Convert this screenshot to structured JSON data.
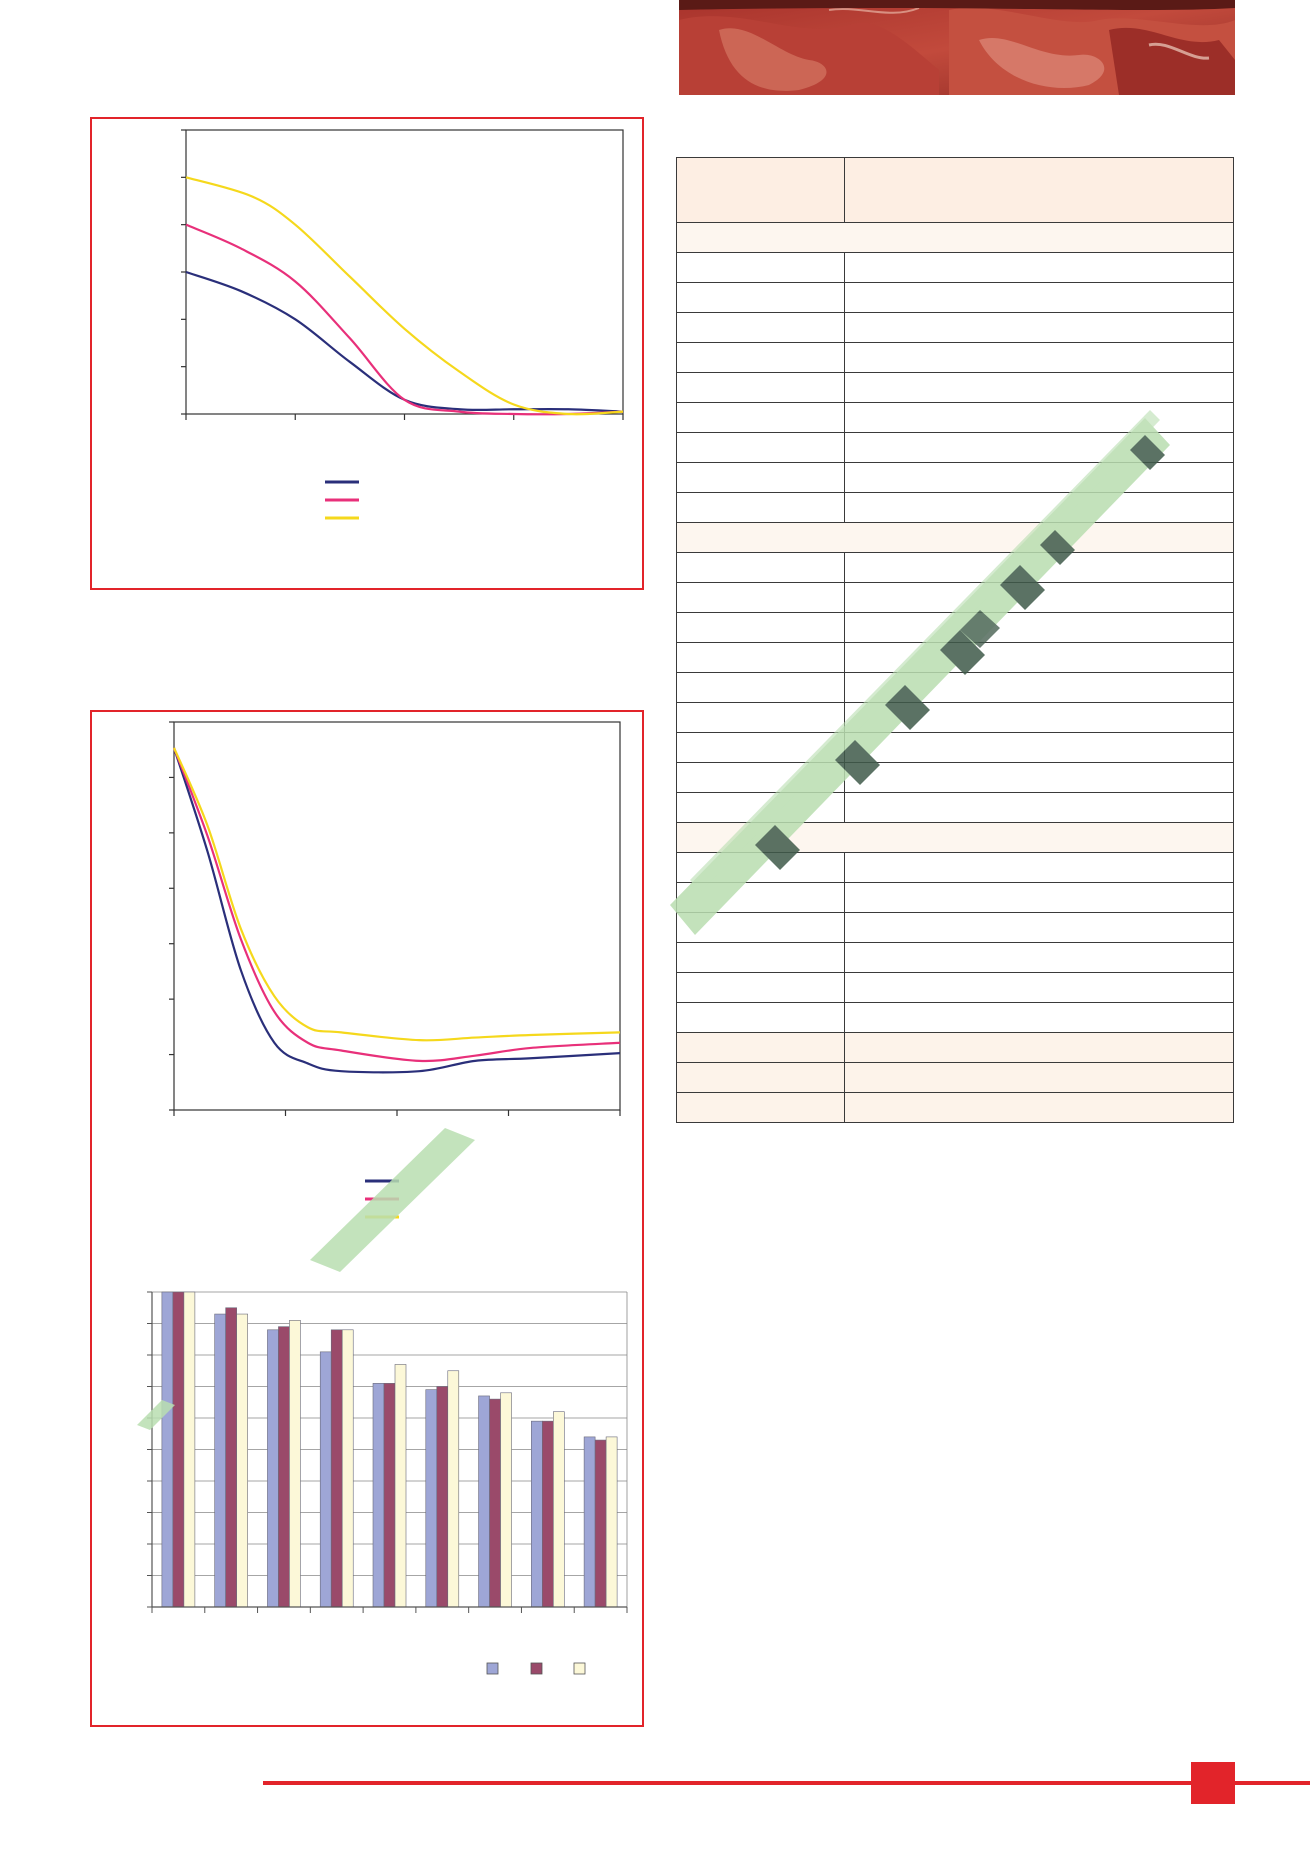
{
  "colors": {
    "navy": "#2a2f7a",
    "magenta": "#e8307a",
    "yellow": "#f5d81c",
    "frame": "#e2242a",
    "bar1": "#9ea6d6",
    "bar2": "#9a4a6a",
    "bar3": "#fcf8d8"
  },
  "photo": {
    "icon": "meat-photo"
  },
  "chart_data": [
    {
      "type": "line",
      "x": [
        0,
        0.25,
        0.5,
        0.75,
        1.0
      ],
      "ylim": [
        0,
        6
      ],
      "xlim": [
        0,
        4
      ],
      "grid": false,
      "legend": "bottom-center",
      "series": [
        {
          "color": "#2a2f7a",
          "points": [
            [
              0,
              3.0
            ],
            [
              0.5,
              2.6
            ],
            [
              1,
              2.0
            ],
            [
              1.5,
              1.1
            ],
            [
              2,
              0.3
            ],
            [
              2.5,
              0.1
            ],
            [
              3,
              0.1
            ],
            [
              3.5,
              0.1
            ],
            [
              4,
              0.05
            ]
          ]
        },
        {
          "color": "#e8307a",
          "points": [
            [
              0,
              4.0
            ],
            [
              0.5,
              3.5
            ],
            [
              1,
              2.8
            ],
            [
              1.5,
              1.6
            ],
            [
              2,
              0.3
            ],
            [
              2.5,
              0.05
            ],
            [
              3,
              0.0
            ],
            [
              3.5,
              0.0
            ],
            [
              4,
              0.05
            ]
          ]
        },
        {
          "color": "#f5d81c",
          "points": [
            [
              0,
              5.0
            ],
            [
              0.6,
              4.6
            ],
            [
              1,
              4.0
            ],
            [
              1.5,
              2.9
            ],
            [
              2,
              1.8
            ],
            [
              2.5,
              0.9
            ],
            [
              3,
              0.2
            ],
            [
              3.5,
              0.0
            ],
            [
              4,
              0.05
            ]
          ]
        }
      ]
    },
    {
      "type": "line",
      "xlim": [
        0,
        4
      ],
      "ylim": [
        0,
        7.5
      ],
      "grid": false,
      "legend": "bottom-center",
      "series": [
        {
          "color": "#2a2f7a",
          "points": [
            [
              0,
              7.0
            ],
            [
              0.3,
              5.0
            ],
            [
              0.6,
              2.7
            ],
            [
              0.9,
              1.3
            ],
            [
              1.2,
              0.9
            ],
            [
              1.5,
              0.75
            ],
            [
              2.2,
              0.75
            ],
            [
              2.7,
              0.95
            ],
            [
              3.2,
              1.0
            ],
            [
              4,
              1.1
            ]
          ]
        },
        {
          "color": "#e8307a",
          "points": [
            [
              0,
              7.0
            ],
            [
              0.3,
              5.3
            ],
            [
              0.6,
              3.3
            ],
            [
              0.9,
              1.9
            ],
            [
              1.2,
              1.3
            ],
            [
              1.5,
              1.15
            ],
            [
              2.2,
              0.95
            ],
            [
              2.7,
              1.05
            ],
            [
              3.2,
              1.2
            ],
            [
              4,
              1.3
            ]
          ]
        },
        {
          "color": "#f5d81c",
          "points": [
            [
              0,
              7.0
            ],
            [
              0.3,
              5.5
            ],
            [
              0.6,
              3.5
            ],
            [
              0.9,
              2.2
            ],
            [
              1.2,
              1.6
            ],
            [
              1.5,
              1.5
            ],
            [
              2.2,
              1.35
            ],
            [
              2.7,
              1.4
            ],
            [
              3.2,
              1.45
            ],
            [
              4,
              1.5
            ]
          ]
        }
      ]
    },
    {
      "type": "bar",
      "categories": [
        "",
        "",
        "",
        "",
        "",
        "",
        "",
        "",
        ""
      ],
      "ylim": [
        0,
        10
      ],
      "grid": true,
      "legend": "bottom-right",
      "series": [
        {
          "color": "#9ea6d6",
          "values": [
            10.0,
            9.3,
            8.8,
            8.1,
            7.1,
            6.9,
            6.7,
            5.9,
            5.4
          ]
        },
        {
          "color": "#9a4a6a",
          "values": [
            10.0,
            9.5,
            8.9,
            8.8,
            7.1,
            7.0,
            6.6,
            5.9,
            5.3
          ]
        },
        {
          "color": "#fcf8d8",
          "values": [
            10.0,
            9.3,
            9.1,
            8.8,
            7.7,
            7.5,
            6.8,
            6.2,
            5.4
          ]
        }
      ]
    }
  ],
  "table": {
    "rows": [
      "head",
      "section",
      "r",
      "r",
      "r",
      "r",
      "r",
      "r",
      "r",
      "r",
      "r",
      "section",
      "r",
      "r",
      "r",
      "r",
      "r",
      "r",
      "r",
      "r",
      "r",
      "section",
      "r",
      "r",
      "r",
      "r",
      "r",
      "r",
      "shade",
      "shade",
      "shade"
    ]
  }
}
